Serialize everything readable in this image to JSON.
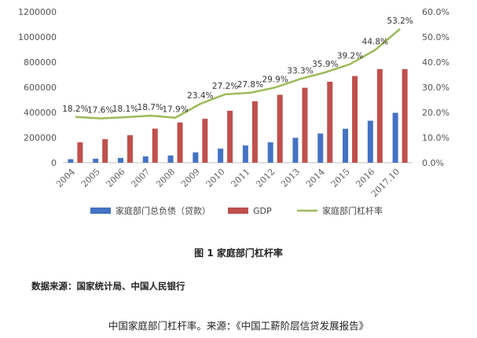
{
  "chart_data": {
    "type": "bar+line",
    "categories": [
      "2004",
      "2005",
      "2006",
      "2007",
      "2008",
      "2009",
      "2010",
      "2011",
      "2012",
      "2013",
      "2014",
      "2015",
      "2016",
      "2017.10"
    ],
    "series": [
      {
        "name": "家庭部门总负债（贷款）",
        "type": "bar",
        "axis": "left",
        "color": "#4472c4",
        "values": [
          28000,
          32000,
          38000,
          50000,
          57000,
          82000,
          112000,
          137000,
          162000,
          198000,
          232000,
          270000,
          334000,
          397000
        ]
      },
      {
        "name": "GDP",
        "type": "bar",
        "axis": "left",
        "color": "#c0504d",
        "values": [
          162000,
          187000,
          219000,
          271000,
          320000,
          349000,
          413000,
          489000,
          540000,
          596000,
          644000,
          689000,
          744000,
          744000
        ]
      },
      {
        "name": "家庭部门杠杆率",
        "type": "line",
        "axis": "right",
        "color": "#9bbb59",
        "values": [
          18.2,
          17.6,
          18.1,
          18.7,
          17.9,
          23.4,
          27.2,
          27.8,
          29.9,
          33.3,
          35.9,
          39.2,
          44.8,
          53.2
        ],
        "labels": [
          "18.2%",
          "17.6%",
          "18.1%",
          "18.7%",
          "17.9%",
          "23.4%",
          "27.2%",
          "27.8%",
          "29.9%",
          "33.3%",
          "35.9%",
          "39.2%",
          "44.8%",
          "53.2%"
        ]
      }
    ],
    "y_left": {
      "min": 0,
      "max": 1200000,
      "ticks": [
        "0",
        "200000",
        "400000",
        "600000",
        "800000",
        "1000000",
        "1200000"
      ]
    },
    "y_right": {
      "min": 0,
      "max": 60,
      "ticks": [
        "0.0%",
        "10.0%",
        "20.0%",
        "30.0%",
        "40.0%",
        "50.0%",
        "60.0%"
      ]
    },
    "legend_position": "bottom",
    "grid": false
  },
  "caption": "图 1  家庭部门杠杆率",
  "source": "数据来源：国家统计局、中国人民银行",
  "footnote": "中国家庭部门杠杆率。来源：《中国工薪阶层信贷发展报告》"
}
